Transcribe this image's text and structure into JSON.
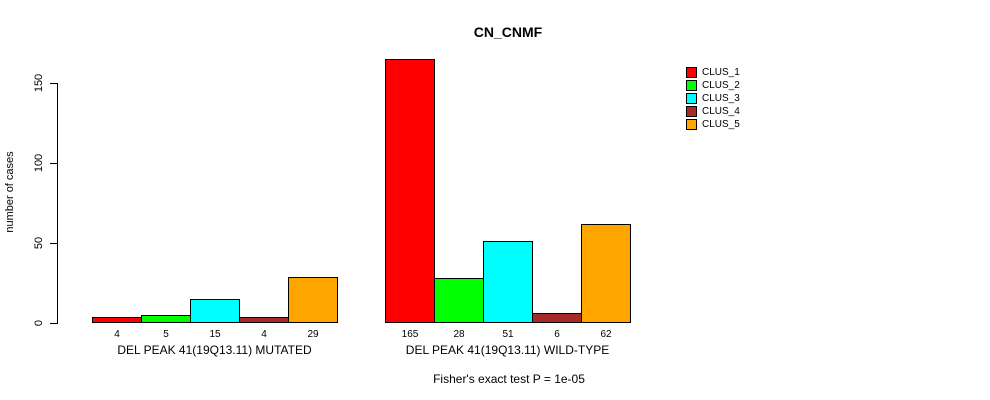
{
  "title": "CN_CNMF",
  "y_axis": {
    "label": "number of cases",
    "ticks": [
      0,
      50,
      100,
      150
    ]
  },
  "footer": "Fisher's exact test P = 1e-05",
  "legend": {
    "position": "top-right",
    "entries": [
      "CLUS_1",
      "CLUS_2",
      "CLUS_3",
      "CLUS_4",
      "CLUS_5"
    ]
  },
  "chart_data": {
    "type": "bar",
    "grouped": true,
    "title": "CN_CNMF",
    "xlabel": "",
    "ylabel": "number of cases",
    "ylim": [
      0,
      165
    ],
    "yticks": [
      0,
      50,
      100,
      150
    ],
    "grid": false,
    "legend_position": "top-right",
    "categories": [
      "DEL PEAK 41(19Q13.11) MUTATED",
      "DEL PEAK 41(19Q13.11) WILD-TYPE"
    ],
    "series": [
      {
        "name": "CLUS_1",
        "color": "#FF0000",
        "values": [
          4,
          165
        ]
      },
      {
        "name": "CLUS_2",
        "color": "#00FF00",
        "values": [
          5,
          28
        ]
      },
      {
        "name": "CLUS_3",
        "color": "#00FFFF",
        "values": [
          15,
          51
        ]
      },
      {
        "name": "CLUS_4",
        "color": "#A52A2A",
        "values": [
          4,
          6
        ]
      },
      {
        "name": "CLUS_5",
        "color": "#FFA500",
        "values": [
          29,
          62
        ]
      }
    ],
    "bar_value_labels": [
      [
        4,
        5,
        15,
        4,
        29
      ],
      [
        165,
        28,
        51,
        6,
        62
      ]
    ],
    "annotation": "Fisher's exact test P = 1e-05"
  }
}
